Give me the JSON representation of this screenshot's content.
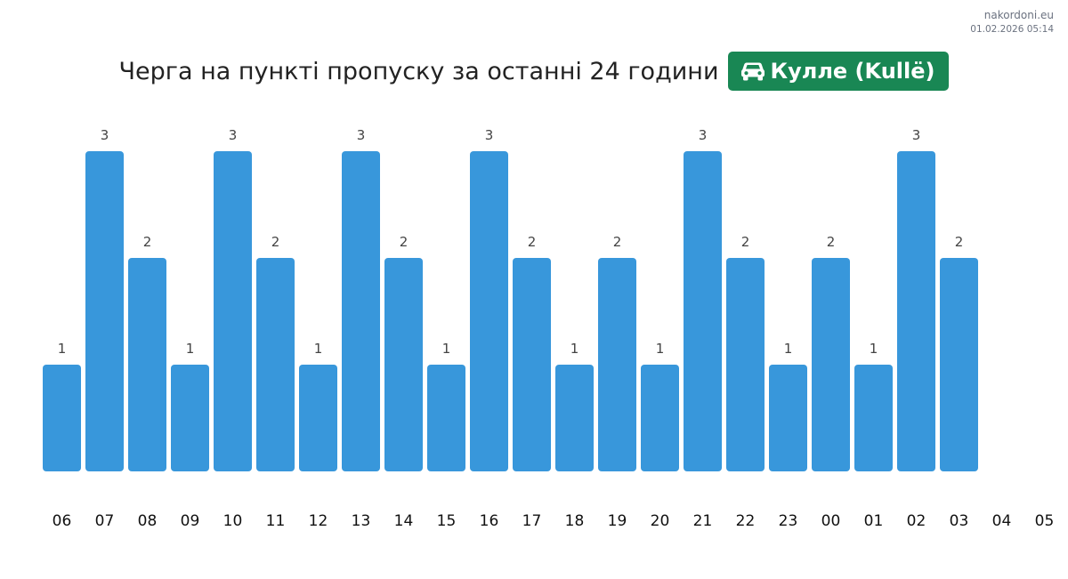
{
  "brand": {
    "site": "nakordoni.eu",
    "timestamp": "01.02.2026 05:14"
  },
  "header": {
    "title": "Черга на пункті пропуску за останні 24 години",
    "checkpoint": "Кулле (Kullë)",
    "checkpoint_icon": "car-icon",
    "badge_color": "#198754"
  },
  "chart_data": {
    "type": "bar",
    "title": "Черга на пункті пропуску за останні 24 години",
    "categories": [
      "06",
      "07",
      "08",
      "09",
      "10",
      "11",
      "12",
      "13",
      "14",
      "15",
      "16",
      "17",
      "18",
      "19",
      "20",
      "21",
      "22",
      "23",
      "00",
      "01",
      "02",
      "03",
      "04",
      "05"
    ],
    "values": [
      1,
      3,
      2,
      1,
      3,
      2,
      1,
      3,
      2,
      1,
      3,
      2,
      1,
      2,
      1,
      3,
      2,
      1,
      2,
      1,
      3,
      2,
      null,
      null
    ],
    "xlabel": "",
    "ylabel": "",
    "ylim": [
      0,
      3
    ],
    "grid": false,
    "legend": "none",
    "bar_color": "#3897db",
    "value_labels": true
  }
}
